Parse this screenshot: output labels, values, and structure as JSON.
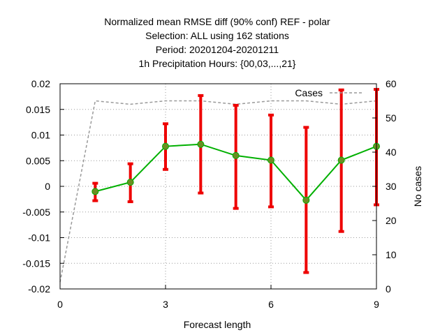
{
  "title_lines": [
    "Normalized mean RMSE diff (90% conf) REF - polar",
    "Selection: ALL using    162 stations",
    "Period: 20201204-20201211",
    "1h Precipitation    Hours: {00,03,...,21}"
  ],
  "chart_data": {
    "type": "line",
    "xlabel": "Forecast length",
    "ylabel": "",
    "y2label": "No cases",
    "xlim": [
      0,
      9
    ],
    "ylim": [
      -0.02,
      0.02
    ],
    "y2lim": [
      0,
      60
    ],
    "xticks": [
      "0",
      "3",
      "6",
      "9"
    ],
    "xtick_values": [
      0,
      3,
      6,
      9
    ],
    "yticks": [
      "-0.02",
      "-0.015",
      "-0.01",
      "-0.005",
      "0",
      "0.005",
      "0.01",
      "0.015",
      "0.02"
    ],
    "ytick_values": [
      -0.02,
      -0.015,
      -0.01,
      -0.005,
      0,
      0.005,
      0.01,
      0.015,
      0.02
    ],
    "y2ticks": [
      "0",
      "10",
      "20",
      "30",
      "40",
      "50",
      "60"
    ],
    "y2tick_values": [
      0,
      10,
      20,
      30,
      40,
      50,
      60
    ],
    "grid": true,
    "legend_position": "top-right",
    "series": [
      {
        "x": [
          1,
          2,
          3,
          4,
          5,
          6,
          7,
          8,
          9
        ],
        "values": [
          -0.001,
          0.0008,
          0.0078,
          0.0082,
          0.006,
          0.0051,
          -0.0027,
          0.0051,
          0.0078
        ],
        "err_low": [
          -0.0028,
          -0.003,
          0.0033,
          -0.0013,
          -0.0043,
          -0.004,
          -0.0168,
          -0.0088,
          -0.0036
        ],
        "err_high": [
          0.0006,
          0.0044,
          0.0122,
          0.0177,
          0.0158,
          0.0139,
          0.0115,
          0.0188,
          0.0189
        ],
        "color": "#00b000",
        "error_color": "#ee0000",
        "marker_color": "#6b8e23"
      },
      {
        "name": "Cases",
        "axis": "right",
        "x": [
          0,
          1,
          2,
          3,
          4,
          5,
          6,
          7,
          8,
          9
        ],
        "values": [
          2,
          55,
          54,
          55,
          55,
          54,
          55,
          55,
          54,
          55
        ],
        "color": "#999999",
        "dashed": true
      }
    ]
  }
}
